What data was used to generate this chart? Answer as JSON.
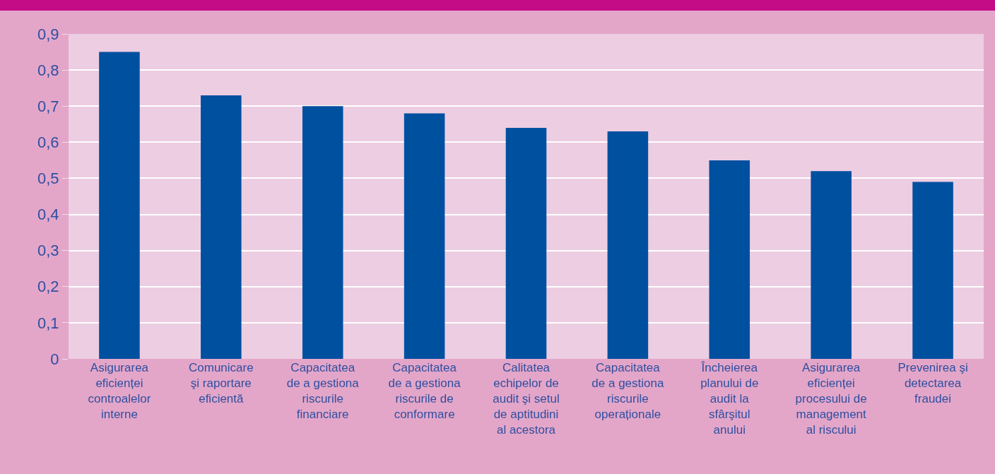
{
  "chart_data": {
    "type": "bar",
    "categories": [
      "Asigurarea\neficienței\ncontroalelor\ninterne",
      "Comunicare\nşi raportare\neficientă",
      "Capacitatea\nde a gestiona\nriscurile\nfinanciare",
      "Capacitatea\nde a gestiona\nriscurile de\nconformare",
      "Calitatea\nechipelor de\naudit şi setul\nde aptitudini\nal acestora",
      "Capacitatea\nde a gestiona\nriscurile\noperaționale",
      "Încheierea\nplanului de\naudit la\nsfârşitul\nanului",
      "Asigurarea\neficienței\nprocesului de\nmanagement\nal riscului",
      "Prevenirea şi\ndetectarea\nfraudei"
    ],
    "values": [
      0.85,
      0.73,
      0.7,
      0.68,
      0.64,
      0.63,
      0.55,
      0.52,
      0.49
    ],
    "color": "#0050a0",
    "ylim": [
      0,
      0.9
    ],
    "yticks": [
      {
        "value": 0,
        "label": "0"
      },
      {
        "value": 0.1,
        "label": "0,1"
      },
      {
        "value": 0.2,
        "label": "0,2"
      },
      {
        "value": 0.3,
        "label": "0,3"
      },
      {
        "value": 0.4,
        "label": "0,4"
      },
      {
        "value": 0.5,
        "label": "0,5"
      },
      {
        "value": 0.6,
        "label": "0,6"
      },
      {
        "value": 0.7,
        "label": "0,7"
      },
      {
        "value": 0.8,
        "label": "0,8"
      },
      {
        "value": 0.9,
        "label": "0,9"
      }
    ],
    "grid": "y"
  }
}
